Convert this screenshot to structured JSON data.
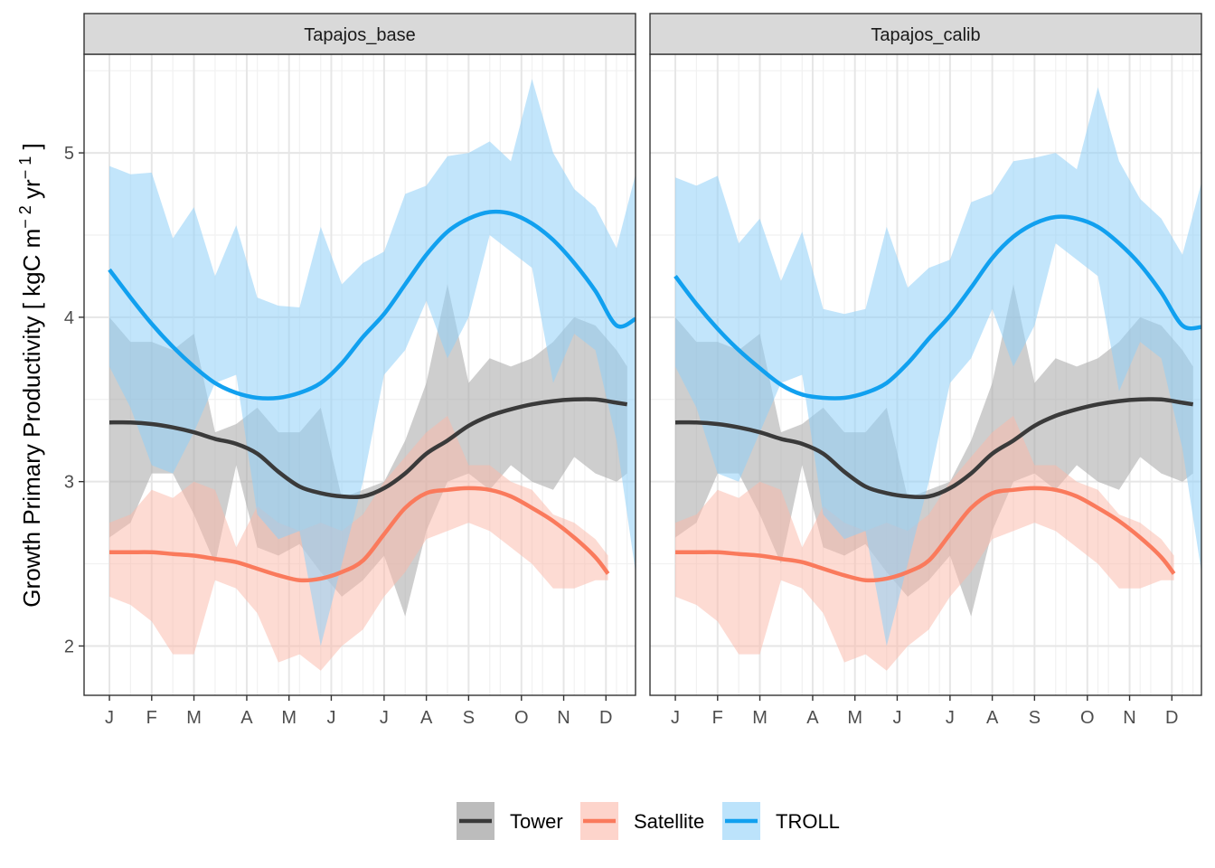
{
  "chart_data": {
    "type": "line",
    "ylabel": "Growth Primary Productivity [ kgC m",
    "ylabel_sup1": "− 2",
    "ylabel_mid": " yr",
    "ylabel_sup2": "− 1",
    "ylabel_end": " ]",
    "ylim": [
      1.7,
      5.6
    ],
    "y_ticks": [
      2,
      3,
      4,
      5
    ],
    "y_tick_labels": [
      "2",
      "3",
      "4",
      "5"
    ],
    "xlim": [
      0.4,
      13.45
    ],
    "x_tick_pos": [
      1,
      2,
      3,
      4.25,
      5.25,
      6.25,
      7.5,
      8.5,
      9.5,
      10.75,
      11.75,
      12.75
    ],
    "x_tick_labels": [
      "J",
      "F",
      "M",
      "A",
      "M",
      "J",
      "J",
      "A",
      "S",
      "O",
      "N",
      "D"
    ],
    "x_grid_minor": [
      1.5,
      2.5,
      3.5,
      4,
      4.5,
      5,
      5.5,
      6,
      6.5,
      7,
      7.25,
      8,
      9,
      10,
      10.25,
      11,
      11.25,
      12,
      12.25,
      13,
      13.25
    ],
    "colors": {
      "Tower": "#3a3a3a",
      "Tower_band": "#a6a6a6",
      "Satellite": "#fa7a5c",
      "Satellite_band": "#fbb8a8",
      "TROLL": "#11a0ef",
      "TROLL_band": "#8fd0f8"
    },
    "legend": {
      "position": "bottom",
      "entries": [
        "Tower",
        "Satellite",
        "TROLL"
      ]
    },
    "panels": [
      {
        "title": "Tapajos_base",
        "series": [
          {
            "name": "Tower",
            "x": [
              1,
              1.5,
              2,
              2.5,
              3,
              3.5,
              4,
              4.5,
              5,
              5.5,
              6,
              6.5,
              7,
              7.5,
              8,
              8.5,
              9,
              9.5,
              10,
              10.5,
              11,
              11.5,
              12,
              12.5,
              13,
              13.25
            ],
            "y": [
              3.36,
              3.36,
              3.35,
              3.33,
              3.3,
              3.26,
              3.23,
              3.17,
              3.06,
              2.97,
              2.93,
              2.91,
              2.91,
              2.96,
              3.05,
              3.17,
              3.25,
              3.34,
              3.4,
              3.44,
              3.47,
              3.49,
              3.5,
              3.5,
              3.48,
              3.47
            ],
            "lower": [
              2.66,
              2.75,
              3.05,
              3.05,
              2.8,
              2.5,
              3.1,
              2.6,
              2.55,
              2.62,
              2.45,
              2.3,
              2.4,
              2.55,
              2.18,
              2.7,
              3.0,
              3.05,
              2.95,
              3.1,
              3.0,
              2.95,
              3.15,
              3.05,
              3.0,
              3.05
            ],
            "upper": [
              4.0,
              3.85,
              3.85,
              3.8,
              3.9,
              3.3,
              3.35,
              3.45,
              3.3,
              3.3,
              3.45,
              2.9,
              2.95,
              3.0,
              3.25,
              3.6,
              4.2,
              3.6,
              3.75,
              3.7,
              3.75,
              3.85,
              4.0,
              3.95,
              3.8,
              3.7
            ]
          },
          {
            "name": "Satellite",
            "x": [
              1,
              1.5,
              2,
              2.5,
              3,
              3.5,
              4,
              4.5,
              5,
              5.5,
              6,
              6.5,
              7,
              7.5,
              8,
              8.5,
              9,
              9.5,
              10,
              10.5,
              11,
              11.5,
              12,
              12.5,
              12.8
            ],
            "y": [
              2.57,
              2.57,
              2.57,
              2.56,
              2.55,
              2.53,
              2.51,
              2.47,
              2.43,
              2.4,
              2.41,
              2.45,
              2.52,
              2.68,
              2.84,
              2.93,
              2.95,
              2.96,
              2.95,
              2.91,
              2.84,
              2.76,
              2.66,
              2.54,
              2.44
            ],
            "lower": [
              2.3,
              2.25,
              2.15,
              1.95,
              1.95,
              2.4,
              2.35,
              2.2,
              1.9,
              1.95,
              1.85,
              2.0,
              2.1,
              2.3,
              2.45,
              2.65,
              2.7,
              2.75,
              2.7,
              2.6,
              2.5,
              2.35,
              2.35,
              2.4,
              2.4
            ],
            "upper": [
              2.75,
              2.8,
              2.95,
              2.9,
              3.0,
              2.95,
              2.6,
              2.85,
              2.75,
              2.7,
              2.75,
              2.7,
              2.8,
              3.0,
              3.15,
              3.3,
              3.4,
              3.1,
              3.1,
              3.0,
              2.95,
              2.8,
              2.75,
              2.65,
              2.55
            ]
          },
          {
            "name": "TROLL",
            "x": [
              1,
              1.5,
              2,
              2.5,
              3,
              3.5,
              4,
              4.5,
              5,
              5.5,
              6,
              6.5,
              7,
              7.5,
              8,
              8.5,
              9,
              9.5,
              10,
              10.5,
              11,
              11.5,
              12,
              12.5,
              13,
              13.45
            ],
            "y": [
              4.29,
              4.12,
              3.96,
              3.82,
              3.7,
              3.6,
              3.54,
              3.51,
              3.51,
              3.54,
              3.6,
              3.72,
              3.88,
              4.02,
              4.2,
              4.38,
              4.52,
              4.6,
              4.64,
              4.63,
              4.57,
              4.47,
              4.33,
              4.16,
              3.95,
              3.99
            ],
            "lower": [
              3.7,
              3.45,
              3.1,
              3.05,
              3.3,
              3.6,
              3.65,
              2.8,
              2.65,
              2.7,
              2.0,
              2.5,
              3.0,
              3.65,
              3.8,
              4.1,
              3.75,
              4.0,
              4.5,
              4.4,
              4.3,
              3.6,
              3.9,
              3.8,
              3.25,
              2.45
            ],
            "upper": [
              4.92,
              4.87,
              4.88,
              4.48,
              4.67,
              4.25,
              4.56,
              4.12,
              4.07,
              4.06,
              4.55,
              4.2,
              4.33,
              4.4,
              4.75,
              4.8,
              4.98,
              5.0,
              5.07,
              4.95,
              5.45,
              5.0,
              4.78,
              4.67,
              4.42,
              4.87
            ]
          }
        ]
      },
      {
        "title": "Tapajos_calib",
        "series": [
          {
            "name": "Tower",
            "x": [
              1,
              1.5,
              2,
              2.5,
              3,
              3.5,
              4,
              4.5,
              5,
              5.5,
              6,
              6.5,
              7,
              7.5,
              8,
              8.5,
              9,
              9.5,
              10,
              10.5,
              11,
              11.5,
              12,
              12.5,
              13,
              13.25
            ],
            "y": [
              3.36,
              3.36,
              3.35,
              3.33,
              3.3,
              3.26,
              3.23,
              3.17,
              3.06,
              2.97,
              2.93,
              2.91,
              2.91,
              2.96,
              3.05,
              3.17,
              3.25,
              3.34,
              3.4,
              3.44,
              3.47,
              3.49,
              3.5,
              3.5,
              3.48,
              3.47
            ],
            "lower": [
              2.66,
              2.75,
              3.05,
              3.05,
              2.8,
              2.5,
              3.1,
              2.6,
              2.55,
              2.62,
              2.45,
              2.3,
              2.4,
              2.55,
              2.18,
              2.7,
              3.0,
              3.05,
              2.95,
              3.1,
              3.0,
              2.95,
              3.15,
              3.05,
              3.0,
              3.05
            ],
            "upper": [
              4.0,
              3.85,
              3.85,
              3.8,
              3.9,
              3.3,
              3.35,
              3.45,
              3.3,
              3.3,
              3.45,
              2.9,
              2.95,
              3.0,
              3.25,
              3.6,
              4.2,
              3.6,
              3.75,
              3.7,
              3.75,
              3.85,
              4.0,
              3.95,
              3.8,
              3.7
            ]
          },
          {
            "name": "Satellite",
            "x": [
              1,
              1.5,
              2,
              2.5,
              3,
              3.5,
              4,
              4.5,
              5,
              5.5,
              6,
              6.5,
              7,
              7.5,
              8,
              8.5,
              9,
              9.5,
              10,
              10.5,
              11,
              11.5,
              12,
              12.5,
              12.8
            ],
            "y": [
              2.57,
              2.57,
              2.57,
              2.56,
              2.55,
              2.53,
              2.51,
              2.47,
              2.43,
              2.4,
              2.41,
              2.45,
              2.52,
              2.68,
              2.84,
              2.93,
              2.95,
              2.96,
              2.95,
              2.91,
              2.84,
              2.76,
              2.66,
              2.54,
              2.44
            ],
            "lower": [
              2.3,
              2.25,
              2.15,
              1.95,
              1.95,
              2.4,
              2.35,
              2.2,
              1.9,
              1.95,
              1.85,
              2.0,
              2.1,
              2.3,
              2.45,
              2.65,
              2.7,
              2.75,
              2.7,
              2.6,
              2.5,
              2.35,
              2.35,
              2.4,
              2.4
            ],
            "upper": [
              2.75,
              2.8,
              2.95,
              2.9,
              3.0,
              2.95,
              2.6,
              2.85,
              2.75,
              2.7,
              2.75,
              2.7,
              2.8,
              3.0,
              3.15,
              3.3,
              3.4,
              3.1,
              3.1,
              3.0,
              2.95,
              2.8,
              2.75,
              2.65,
              2.55
            ]
          },
          {
            "name": "TROLL",
            "x": [
              1,
              1.5,
              2,
              2.5,
              3,
              3.5,
              4,
              4.5,
              5,
              5.5,
              6,
              6.5,
              7,
              7.5,
              8,
              8.5,
              9,
              9.5,
              10,
              10.5,
              11,
              11.5,
              12,
              12.5,
              13,
              13.45
            ],
            "y": [
              4.25,
              4.08,
              3.93,
              3.8,
              3.69,
              3.59,
              3.53,
              3.51,
              3.51,
              3.54,
              3.6,
              3.72,
              3.87,
              4.01,
              4.18,
              4.36,
              4.49,
              4.57,
              4.61,
              4.6,
              4.55,
              4.45,
              4.32,
              4.15,
              3.95,
              3.94
            ],
            "lower": [
              3.7,
              3.45,
              3.05,
              3.0,
              3.3,
              3.6,
              3.65,
              2.8,
              2.65,
              2.7,
              2.0,
              2.5,
              3.0,
              3.6,
              3.75,
              4.05,
              3.7,
              3.95,
              4.45,
              4.35,
              4.25,
              3.55,
              3.85,
              3.75,
              3.2,
              2.45
            ],
            "upper": [
              4.85,
              4.8,
              4.86,
              4.45,
              4.6,
              4.22,
              4.52,
              4.05,
              4.02,
              4.05,
              4.55,
              4.18,
              4.3,
              4.35,
              4.7,
              4.75,
              4.95,
              4.97,
              5.0,
              4.9,
              5.4,
              4.95,
              4.72,
              4.6,
              4.38,
              4.82
            ]
          }
        ]
      }
    ]
  }
}
